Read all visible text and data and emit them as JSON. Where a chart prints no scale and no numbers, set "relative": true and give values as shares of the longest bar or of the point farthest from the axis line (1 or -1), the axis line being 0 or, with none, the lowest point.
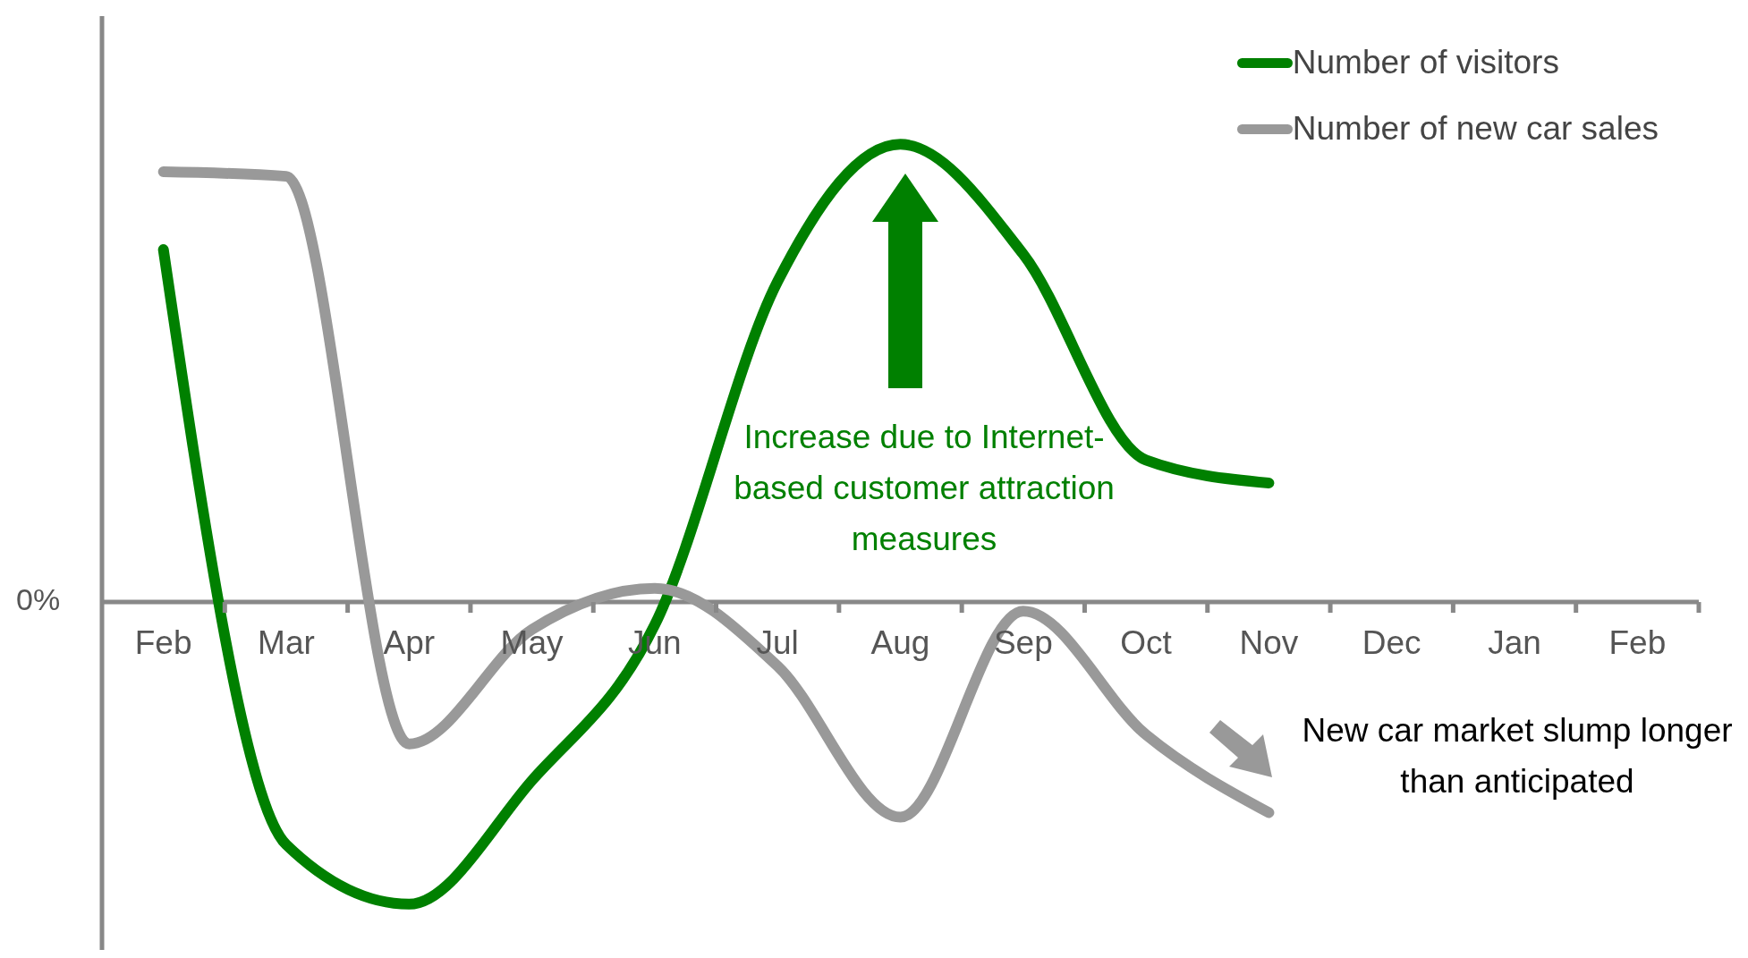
{
  "chart_data": {
    "type": "line",
    "relative": true,
    "categories": [
      "Feb",
      "Mar",
      "Apr",
      "May",
      "Jun",
      "Jul",
      "Aug",
      "Sep",
      "Oct",
      "Nov",
      "Dec",
      "Jan",
      "Feb"
    ],
    "series": [
      {
        "name": "Number of visitors",
        "color": "#008000",
        "values": [
          0.77,
          -0.53,
          -0.66,
          -0.39,
          -0.05,
          0.7,
          1,
          0.76,
          0.31,
          0.26,
          null,
          null,
          null
        ]
      },
      {
        "name": "Number of new car sales",
        "color": "#999999",
        "values": [
          0.94,
          0.93,
          -0.31,
          -0.06,
          0.03,
          -0.14,
          -0.47,
          -0.02,
          -0.29,
          -0.46,
          null,
          null,
          null
        ]
      }
    ],
    "annotations": [
      "Increase due to Internet-based customer attraction measures",
      "New car market slump longer than anticipated",
      "0%"
    ],
    "legend": "top right",
    "marker": "none",
    "line_style": "solid"
  }
}
